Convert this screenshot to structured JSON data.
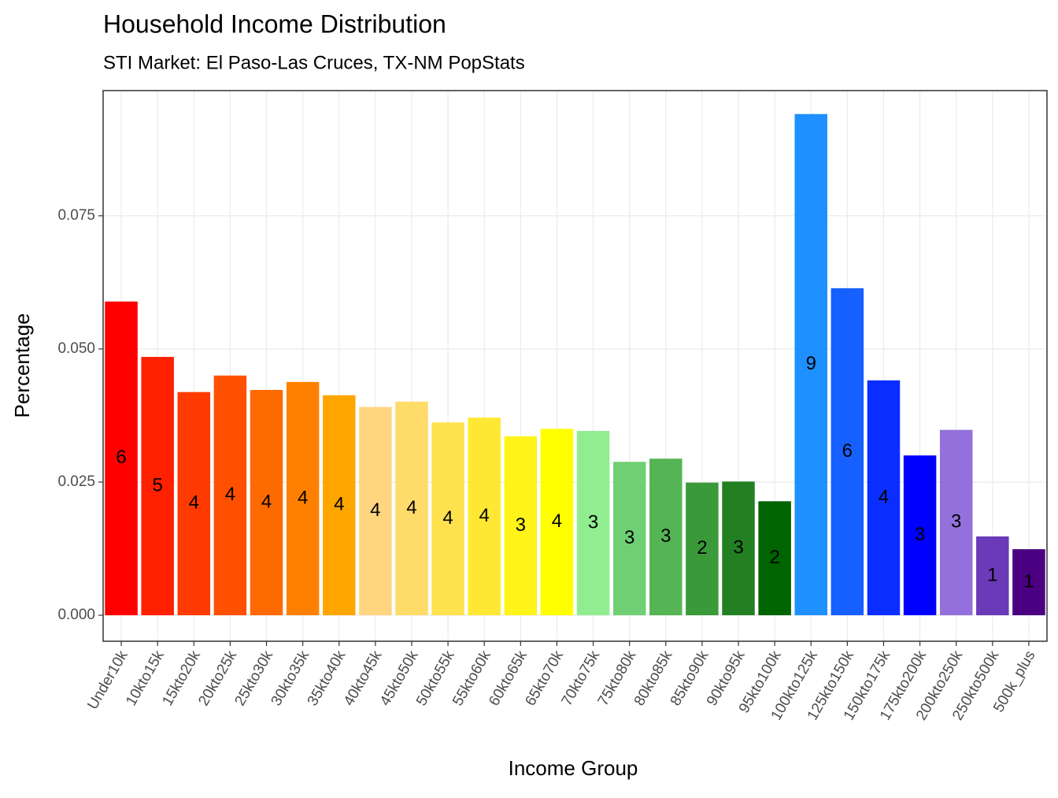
{
  "chart_data": {
    "type": "bar",
    "title": "Household Income Distribution",
    "subtitle": "STI Market: El Paso-Las Cruces, TX-NM PopStats",
    "x_label": "Income Group",
    "y_label": "Percentage",
    "categories": [
      "Under10k",
      "10kto15k",
      "15kto20k",
      "20kto25k",
      "25kto30k",
      "30kto35k",
      "35kto40k",
      "40kto45k",
      "45kto50k",
      "50kto55k",
      "55kto60k",
      "60kto65k",
      "65kto70k",
      "70kto75k",
      "75kto80k",
      "80kto85k",
      "85kto90k",
      "90kto95k",
      "95kto100k",
      "100kto125k",
      "125kto150k",
      "150kto175k",
      "175kto200k",
      "200kto250k",
      "250kto500k",
      "500k_plus"
    ],
    "values": [
      0.0589,
      0.0485,
      0.0419,
      0.045,
      0.0423,
      0.0438,
      0.0413,
      0.0391,
      0.0401,
      0.0362,
      0.0371,
      0.0336,
      0.035,
      0.0346,
      0.0288,
      0.0294,
      0.0249,
      0.0251,
      0.0214,
      0.0941,
      0.0614,
      0.0441,
      0.03,
      0.0348,
      0.0148,
      0.0124
    ],
    "value_labels": [
      "6",
      "5",
      "4",
      "4",
      "4",
      "4",
      "4",
      "4",
      "4",
      "4",
      "4",
      "3",
      "4",
      "3",
      "3",
      "3",
      "2",
      "3",
      "2",
      "9",
      "6",
      "4",
      "3",
      "3",
      "1",
      "1"
    ],
    "colors": [
      "#FF0000",
      "#FF2000",
      "#FF3A00",
      "#FF5000",
      "#FF6A00",
      "#FF8000",
      "#FFA500",
      "#FFD580",
      "#FFDB6A",
      "#FFE24D",
      "#FFE833",
      "#FFF31A",
      "#FFFF00",
      "#90EE90",
      "#6FCF75",
      "#55B555",
      "#3A9A3A",
      "#228022",
      "#006400",
      "#1E90FF",
      "#1560FF",
      "#0A2EFF",
      "#0000FF",
      "#9370DB",
      "#6A3AB8",
      "#4B0082"
    ],
    "ylim": [
      -0.00488,
      0.0985
    ],
    "yticks": [
      {
        "value": 0,
        "label": "0.000"
      },
      {
        "value": 0.025,
        "label": "0.025"
      },
      {
        "value": 0.05,
        "label": "0.050"
      },
      {
        "value": 0.075,
        "label": "0.075"
      }
    ],
    "grid": true
  }
}
